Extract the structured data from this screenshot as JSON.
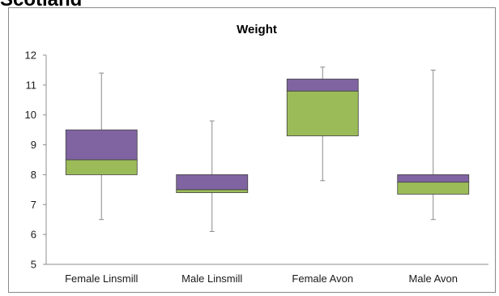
{
  "page": {
    "heading": "Scotland"
  },
  "chart_data": {
    "type": "box",
    "title": "Weight",
    "xlabel": "",
    "ylabel": "",
    "ylim": [
      5,
      12
    ],
    "yticks": [
      5,
      6,
      7,
      8,
      9,
      10,
      11,
      12
    ],
    "grid": false,
    "legend": "none",
    "categories": [
      "Female Linsmill",
      "Male Linsmill",
      "Female Avon",
      "Male Avon"
    ],
    "boxes": [
      {
        "min": 6.5,
        "q1": 8.0,
        "median": 8.5,
        "q3": 9.5,
        "max": 11.4
      },
      {
        "min": 6.1,
        "q1": 7.4,
        "median": 7.5,
        "q3": 8.0,
        "max": 9.8
      },
      {
        "min": 7.8,
        "q1": 9.3,
        "median": 10.8,
        "q3": 11.2,
        "max": 11.6
      },
      {
        "min": 6.5,
        "q1": 7.35,
        "median": 7.75,
        "q3": 8.0,
        "max": 11.5
      }
    ],
    "colors": {
      "lower_box": "#9bbb59",
      "upper_box": "#8064a2",
      "whisker": "#8c8c8c",
      "axis": "#8c8c8c"
    }
  }
}
